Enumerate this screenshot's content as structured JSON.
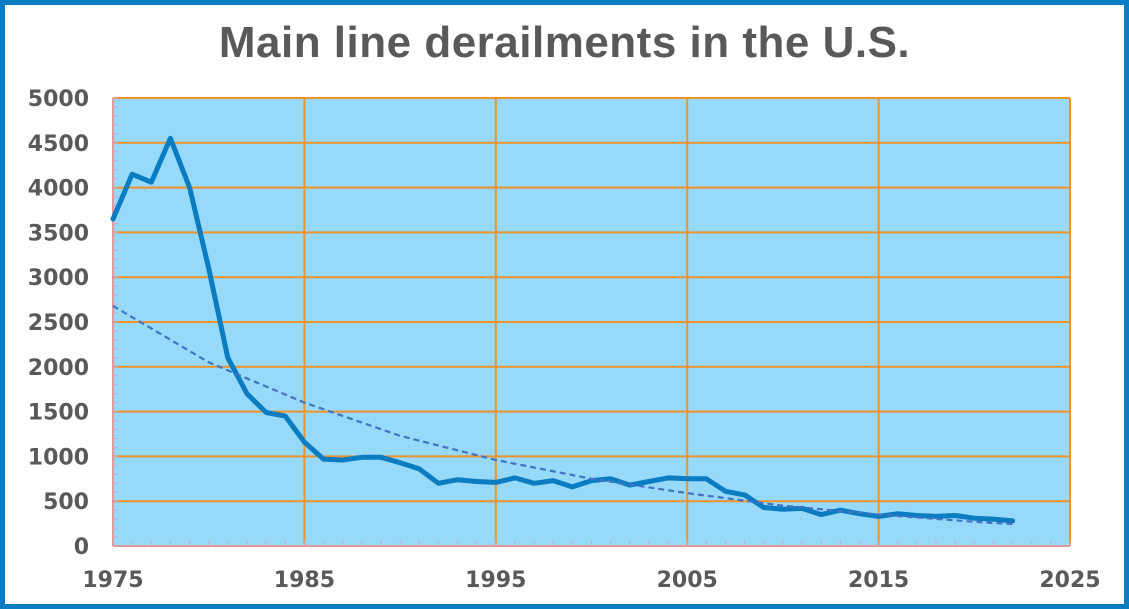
{
  "chart_data": {
    "type": "line",
    "title": "Main line derailments in the U.S.",
    "xlabel": "",
    "ylabel": "",
    "xlim": [
      1975,
      2025
    ],
    "ylim": [
      0,
      5000
    ],
    "x_ticks": [
      1975,
      1985,
      1995,
      2005,
      2015,
      2025
    ],
    "y_ticks": [
      0,
      500,
      1000,
      1500,
      2000,
      2500,
      3000,
      3500,
      4000,
      4500,
      5000
    ],
    "grid": true,
    "legend": "none",
    "colors": {
      "plot_background": "#97d9f9",
      "gridline": "#f0922a",
      "series_line": "#0a7cc1",
      "trendline": "#4472c4",
      "border": "#0a7cc1",
      "text": "#595959"
    },
    "series": [
      {
        "style": "solid",
        "x": [
          1975,
          1976,
          1977,
          1978,
          1979,
          1980,
          1981,
          1982,
          1983,
          1984,
          1985,
          1986,
          1987,
          1988,
          1989,
          1990,
          1991,
          1992,
          1993,
          1994,
          1995,
          1996,
          1997,
          1998,
          1999,
          2000,
          2001,
          2002,
          2003,
          2004,
          2005,
          2006,
          2007,
          2008,
          2009,
          2010,
          2011,
          2012,
          2013,
          2014,
          2015,
          2016,
          2017,
          2018,
          2019,
          2020,
          2021,
          2022
        ],
        "values": [
          3650,
          4150,
          4060,
          4550,
          4000,
          3100,
          2100,
          1700,
          1490,
          1450,
          1160,
          970,
          960,
          990,
          990,
          930,
          860,
          700,
          740,
          720,
          710,
          760,
          700,
          730,
          660,
          730,
          750,
          680,
          720,
          760,
          750,
          750,
          610,
          570,
          430,
          410,
          420,
          350,
          400,
          360,
          330,
          360,
          340,
          330,
          340,
          310,
          300,
          280
        ]
      },
      {
        "style": "dashed",
        "x": [
          1975,
          1980,
          1985,
          1990,
          1995,
          2000,
          2005,
          2010,
          2015,
          2020,
          2022
        ],
        "values": [
          2680,
          2050,
          1600,
          1230,
          960,
          750,
          590,
          450,
          350,
          270,
          245
        ]
      }
    ]
  }
}
